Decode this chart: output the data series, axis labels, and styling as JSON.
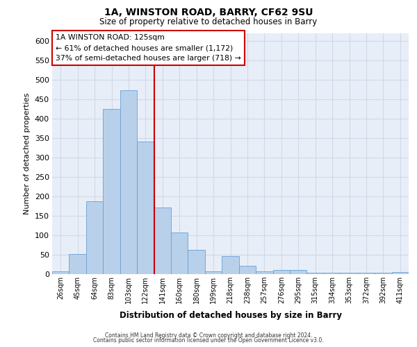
{
  "title_line1": "1A, WINSTON ROAD, BARRY, CF62 9SU",
  "title_line2": "Size of property relative to detached houses in Barry",
  "xlabel": "Distribution of detached houses by size in Barry",
  "ylabel": "Number of detached properties",
  "categories": [
    "26sqm",
    "45sqm",
    "64sqm",
    "83sqm",
    "103sqm",
    "122sqm",
    "141sqm",
    "160sqm",
    "180sqm",
    "199sqm",
    "218sqm",
    "238sqm",
    "257sqm",
    "276sqm",
    "295sqm",
    "315sqm",
    "334sqm",
    "353sqm",
    "372sqm",
    "392sqm",
    "411sqm"
  ],
  "values": [
    8,
    52,
    188,
    425,
    472,
    340,
    172,
    107,
    62,
    8,
    47,
    22,
    8,
    10,
    10,
    3,
    3,
    3,
    3,
    3,
    5
  ],
  "bar_color": "#b8d0ea",
  "bar_edge_color": "#6a9fd8",
  "vline_x": 5.5,
  "vline_color": "#cc0000",
  "annotation_text": "1A WINSTON ROAD: 125sqm\n← 61% of detached houses are smaller (1,172)\n37% of semi-detached houses are larger (718) →",
  "annotation_box_facecolor": "#ffffff",
  "annotation_box_edgecolor": "#cc0000",
  "footnote_line1": "Contains HM Land Registry data © Crown copyright and database right 2024.",
  "footnote_line2": "Contains public sector information licensed under the Open Government Licence v3.0.",
  "ylim": [
    0,
    620
  ],
  "yticks": [
    0,
    50,
    100,
    150,
    200,
    250,
    300,
    350,
    400,
    450,
    500,
    550,
    600
  ],
  "plot_bg_color": "#e8eef8",
  "fig_bg_color": "#ffffff",
  "grid_color": "#d0d8e8"
}
